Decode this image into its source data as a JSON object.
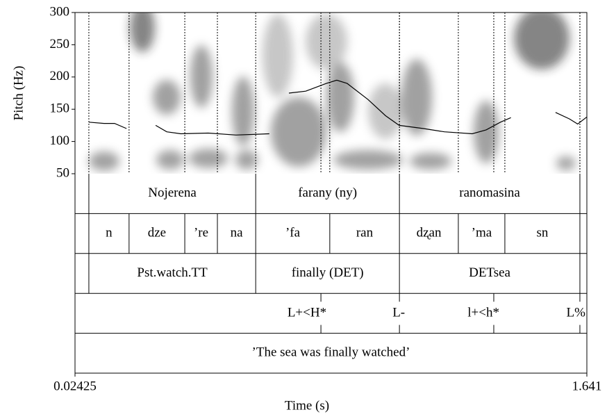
{
  "chart_data": {
    "type": "pitch",
    "xlabel": "Time (s)",
    "ylabel": "Pitch (Hz)",
    "xlim": [
      0.02425,
      1.641
    ],
    "xticks": [
      0.02425,
      1.641
    ],
    "ylim": [
      50,
      300
    ],
    "yticks": [
      50,
      100,
      150,
      200,
      250,
      300
    ],
    "color": "#000000",
    "x": [
      0.068,
      0.116,
      0.149,
      0.187,
      0.233,
      0.279,
      0.314,
      0.358,
      0.445,
      0.533,
      0.638,
      0.669,
      0.7,
      0.753,
      0.818,
      0.851,
      0.884,
      0.95,
      1.005,
      1.048,
      1.125,
      1.191,
      1.279,
      1.323,
      1.368,
      1.401,
      1.471,
      1.542,
      1.586,
      1.612,
      1.641
    ],
    "values": [
      130,
      128,
      128,
      120,
      null,
      125,
      115,
      112,
      113,
      110,
      112,
      null,
      175,
      178,
      190,
      195,
      190,
      165,
      140,
      125,
      120,
      115,
      112,
      118,
      130,
      137,
      null,
      145,
      135,
      127,
      138
    ],
    "tiers": [
      {
        "boundaries": [
          0.068,
          0.595,
          1.049,
          1.619
        ],
        "labels": [
          "Nojerena",
          "farany (ny)",
          "ranomasina"
        ]
      },
      {
        "boundaries": [
          0.068,
          0.195,
          0.371,
          0.474,
          0.595,
          0.829,
          1.049,
          1.235,
          1.382,
          1.619
        ],
        "labels": [
          "n",
          "dze",
          "’re",
          "na",
          "’fa",
          "ran",
          "dʐan",
          "’ma",
          "sn"
        ]
      },
      {
        "boundaries": [
          0.068,
          0.595,
          1.049,
          1.619
        ],
        "labels": [
          "Pst.watch.TT",
          "finally (DET)",
          "DETsea"
        ]
      },
      {
        "points": [
          0.801,
          1.049,
          1.347,
          1.619
        ],
        "labels": [
          "L+<H*",
          "L-",
          "l+<h*",
          "L%"
        ]
      },
      {
        "labels": [
          "’The sea was finally watched’"
        ]
      }
    ]
  }
}
